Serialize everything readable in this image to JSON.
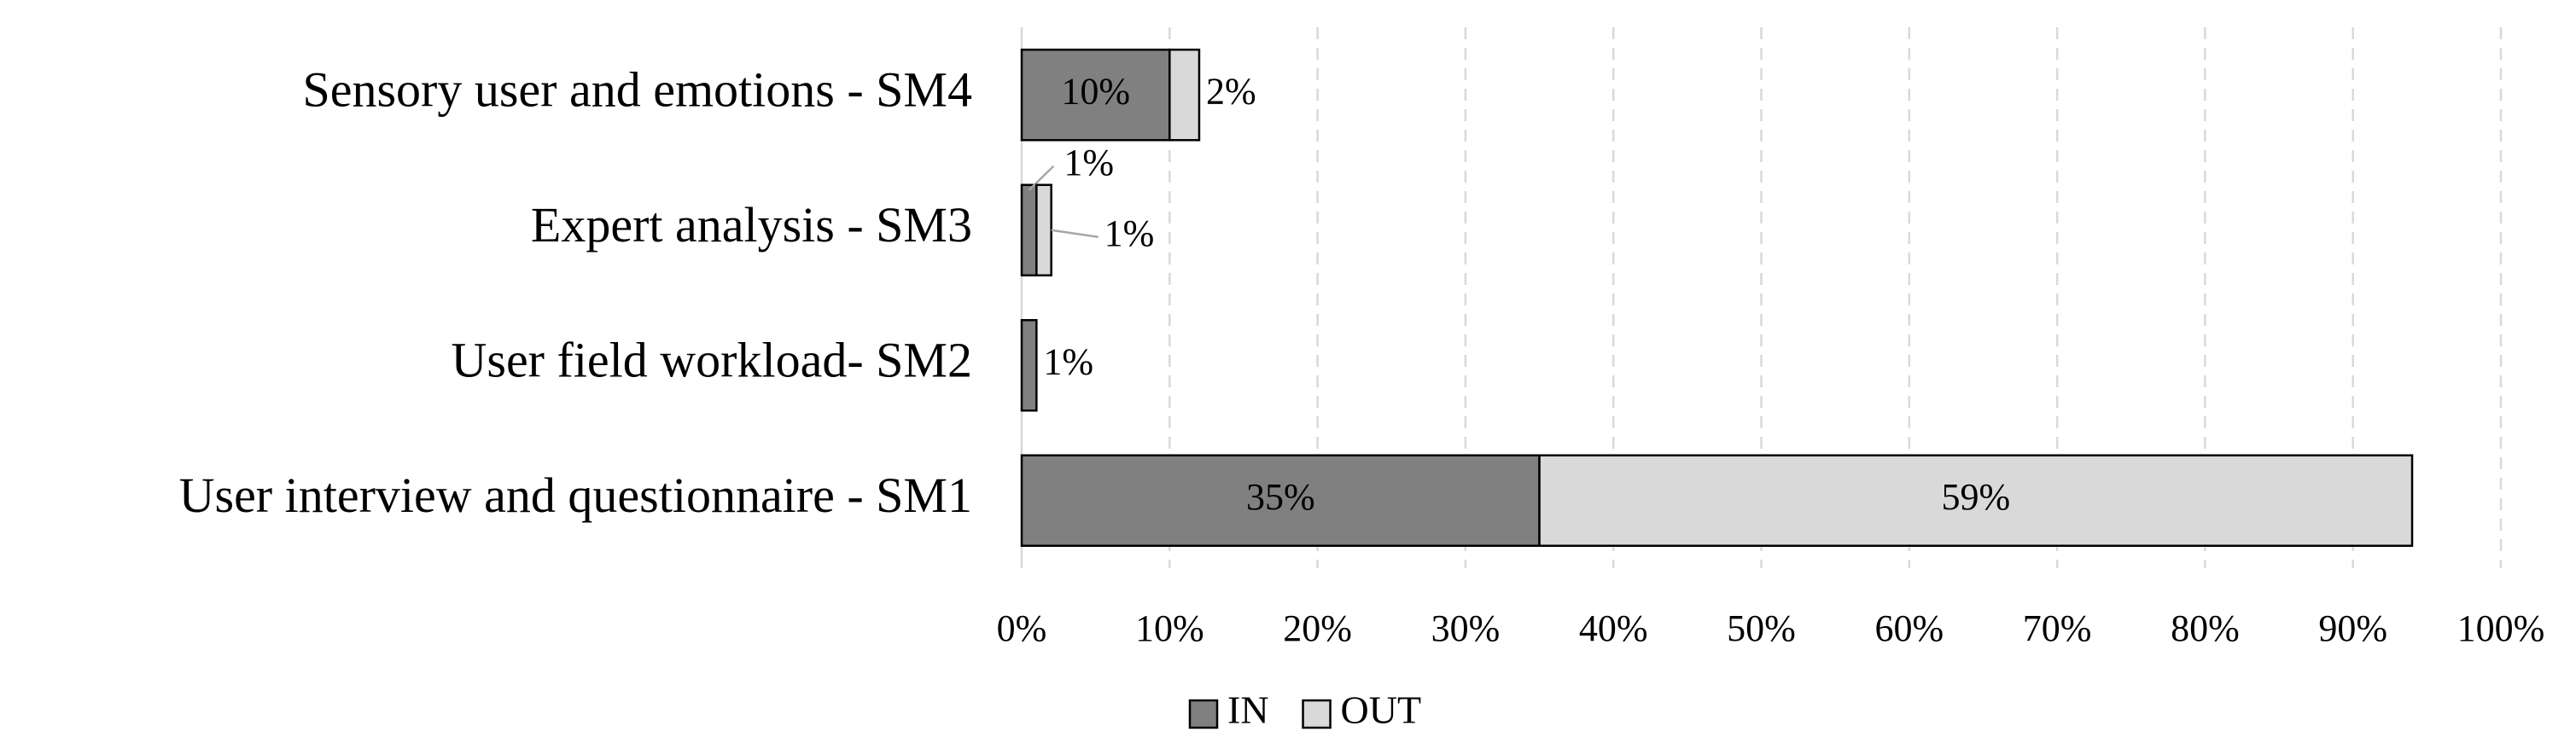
{
  "chart_data": {
    "type": "stacked-bar-horizontal",
    "categories": [
      "Sensory user and emotions - SM4",
      "Expert analysis - SM3",
      "User field workload- SM2",
      "User interview and questionnaire - SM1"
    ],
    "series": [
      {
        "name": "IN",
        "color": "#808080",
        "values": [
          10,
          1,
          1,
          35
        ],
        "value_labels": [
          "10%",
          "1%",
          "1%",
          "35%"
        ]
      },
      {
        "name": "OUT",
        "color": "#d9d9d9",
        "values": [
          2,
          1,
          null,
          59
        ],
        "value_labels": [
          "2%",
          "1%",
          null,
          "59%"
        ]
      }
    ],
    "xlim": [
      0,
      100
    ],
    "xticks": [
      {
        "value": 0,
        "label": "0%"
      },
      {
        "value": 10,
        "label": "10%"
      },
      {
        "value": 20,
        "label": "20%"
      },
      {
        "value": 30,
        "label": "30%"
      },
      {
        "value": 40,
        "label": "40%"
      },
      {
        "value": 50,
        "label": "50%"
      },
      {
        "value": 60,
        "label": "60%"
      },
      {
        "value": 70,
        "label": "70%"
      },
      {
        "value": 80,
        "label": "80%"
      },
      {
        "value": 90,
        "label": "90%"
      },
      {
        "value": 100,
        "label": "100%"
      }
    ],
    "grid": true,
    "legend": "bottom"
  }
}
